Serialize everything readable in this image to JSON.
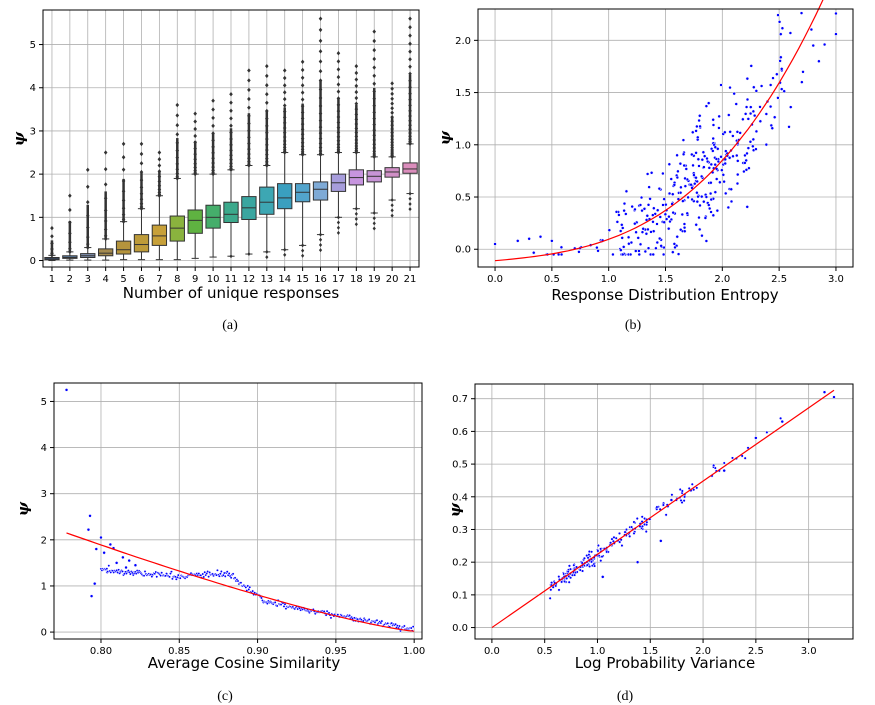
{
  "chart_data": [
    {
      "type": "box",
      "caption": "(a)",
      "xlabel": "Number of unique responses",
      "ylabel": "ψ",
      "ylim": [
        -0.15,
        5.8
      ],
      "yticks": [
        0,
        1,
        2,
        3,
        4,
        5
      ],
      "grid": true,
      "categories": [
        "1",
        "2",
        "3",
        "4",
        "5",
        "6",
        "7",
        "8",
        "9",
        "10",
        "11",
        "12",
        "13",
        "14",
        "15",
        "16",
        "17",
        "18",
        "19",
        "20",
        "21"
      ],
      "boxes": [
        {
          "whislo": 0.0,
          "q1": 0.02,
          "med": 0.04,
          "q3": 0.07,
          "whishi": 0.12,
          "fmax": 0.75
        },
        {
          "whislo": 0.01,
          "q1": 0.05,
          "med": 0.07,
          "q3": 0.11,
          "whishi": 0.2,
          "fmax": 1.5
        },
        {
          "whislo": 0.01,
          "q1": 0.07,
          "med": 0.11,
          "q3": 0.16,
          "whishi": 0.3,
          "fmax": 2.1
        },
        {
          "whislo": 0.01,
          "q1": 0.11,
          "med": 0.17,
          "q3": 0.27,
          "whishi": 0.5,
          "fmax": 2.5
        },
        {
          "whislo": 0.02,
          "q1": 0.15,
          "med": 0.25,
          "q3": 0.45,
          "whishi": 0.9,
          "fmax": 2.7
        },
        {
          "whislo": 0.02,
          "q1": 0.2,
          "med": 0.37,
          "q3": 0.6,
          "whishi": 1.2,
          "fmax": 2.7
        },
        {
          "whislo": 0.02,
          "q1": 0.35,
          "med": 0.57,
          "q3": 0.82,
          "whishi": 1.5,
          "fmax": 2.5
        },
        {
          "whislo": 0.02,
          "q1": 0.45,
          "med": 0.75,
          "q3": 1.03,
          "whishi": 1.9,
          "fmax": 3.6
        },
        {
          "whislo": 0.05,
          "q1": 0.63,
          "med": 0.93,
          "q3": 1.17,
          "whishi": 2.0,
          "fmax": 3.4
        },
        {
          "whislo": 0.08,
          "q1": 0.75,
          "med": 1.0,
          "q3": 1.28,
          "whishi": 2.0,
          "fmax": 3.7
        },
        {
          "whislo": 0.1,
          "q1": 0.88,
          "med": 1.07,
          "q3": 1.35,
          "whishi": 2.1,
          "fmax": 3.85
        },
        {
          "whislo": 0.15,
          "q1": 0.95,
          "med": 1.22,
          "q3": 1.48,
          "whishi": 2.2,
          "fmax": 4.4
        },
        {
          "whislo": 0.2,
          "q1": 1.07,
          "med": 1.35,
          "q3": 1.7,
          "whishi": 2.2,
          "fmax": 4.5
        },
        {
          "whislo": 0.25,
          "q1": 1.2,
          "med": 1.45,
          "q3": 1.78,
          "whishi": 2.5,
          "fmax": 4.4
        },
        {
          "whislo": 0.35,
          "q1": 1.36,
          "med": 1.58,
          "q3": 1.78,
          "whishi": 2.45,
          "fmax": 4.6
        },
        {
          "whislo": 0.6,
          "q1": 1.4,
          "med": 1.65,
          "q3": 1.82,
          "whishi": 2.45,
          "fmax": 5.6
        },
        {
          "whislo": 1.0,
          "q1": 1.6,
          "med": 1.8,
          "q3": 2.0,
          "whishi": 2.5,
          "fmax": 4.8
        },
        {
          "whislo": 1.2,
          "q1": 1.75,
          "med": 1.92,
          "q3": 2.1,
          "whishi": 2.5,
          "fmax": 4.5
        },
        {
          "whislo": 1.1,
          "q1": 1.82,
          "med": 1.95,
          "q3": 2.08,
          "whishi": 2.4,
          "fmax": 5.3
        },
        {
          "whislo": 1.4,
          "q1": 1.93,
          "med": 2.05,
          "q3": 2.15,
          "whishi": 2.4,
          "fmax": 4.1
        },
        {
          "whislo": 1.55,
          "q1": 2.02,
          "med": 2.12,
          "q3": 2.26,
          "whishi": 2.7,
          "fmax": 5.6
        }
      ],
      "box_colors": [
        "#3d68a6",
        "#5c7fa4",
        "#8091b0",
        "#a48a4e",
        "#b5943c",
        "#bd9b3a",
        "#c7a039",
        "#8ab33e",
        "#5fb241",
        "#45ae6b",
        "#3ca98c",
        "#3aa6a0",
        "#3da7b3",
        "#3a9fbf",
        "#52a4cc",
        "#7eaad6",
        "#a79ddc",
        "#c795df",
        "#c794d6",
        "#d08fc6",
        "#db8dbc"
      ]
    },
    {
      "type": "scatter",
      "caption": "(b)",
      "xlabel": "Response Distribution Entropy",
      "ylabel": "ψ",
      "xlim": [
        -0.15,
        3.15
      ],
      "ylim": [
        -0.17,
        2.3
      ],
      "xticks": [
        "0.0",
        "0.5",
        "1.0",
        "1.5",
        "2.0",
        "2.5",
        "3.0"
      ],
      "yticks": [
        "0.0",
        "0.5",
        "1.0",
        "1.5",
        "2.0"
      ],
      "fit": {
        "type": "quadratic",
        "a": 0.17,
        "b": 0.26,
        "c": -0.12,
        "x_range": [
          0.0,
          2.97
        ]
      },
      "points_note": "~350 scattered points following fit with spread; x from 0.0 to 3.0",
      "grid": true,
      "point_color": "#0000ff",
      "fit_color": "#ff0000"
    },
    {
      "type": "scatter",
      "caption": "(c)",
      "xlabel": "Average Cosine Similarity",
      "ylabel": "ψ",
      "xlim": [
        0.77,
        1.005
      ],
      "ylim": [
        -0.15,
        5.4
      ],
      "xticks": [
        "0.80",
        "0.85",
        "0.90",
        "0.95",
        "1.00"
      ],
      "yticks": [
        "0",
        "1",
        "2",
        "3",
        "4",
        "5"
      ],
      "outlier": [
        0.778,
        5.25
      ],
      "fit": {
        "type": "linear-decay",
        "x_range": [
          0.778,
          1.0
        ],
        "y_at_start": 2.15,
        "y_at_end": 0.02
      },
      "grid": true,
      "point_color": "#0000ff",
      "fit_color": "#ff0000"
    },
    {
      "type": "scatter",
      "caption": "(d)",
      "xlabel": "Log Probability Variance",
      "ylabel": "ψ",
      "xlim": [
        -0.16,
        3.42
      ],
      "ylim": [
        -0.035,
        0.745
      ],
      "xticks": [
        "0.0",
        "0.5",
        "1.0",
        "1.5",
        "2.0",
        "2.5",
        "3.0"
      ],
      "yticks": [
        "0.0",
        "0.1",
        "0.2",
        "0.3",
        "0.4",
        "0.5",
        "0.6",
        "0.7"
      ],
      "fit": {
        "type": "linear",
        "slope": 0.224,
        "intercept": 0.0,
        "x_range": [
          0.0,
          3.24
        ]
      },
      "grid": true,
      "point_color": "#0000ff",
      "fit_color": "#ff0000"
    }
  ]
}
